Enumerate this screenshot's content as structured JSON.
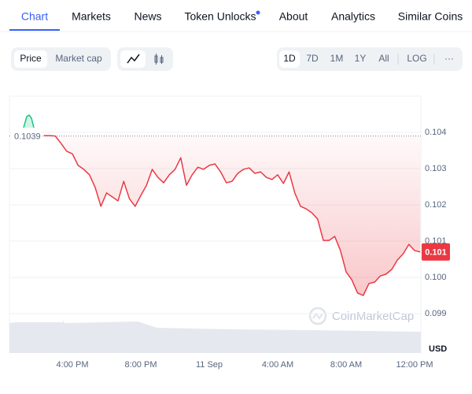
{
  "nav": {
    "tabs": [
      "Chart",
      "Markets",
      "News",
      "Token Unlocks",
      "About",
      "Analytics",
      "Similar Coins"
    ],
    "active": 0
  },
  "toolbar": {
    "metrics": [
      "Price",
      "Market cap"
    ],
    "active_metric": 0,
    "ranges": [
      "1D",
      "7D",
      "1M",
      "1Y",
      "All"
    ],
    "active_range": 0,
    "scale": "LOG",
    "more": "···"
  },
  "watermark": "CoinMarketCap",
  "chart_data": {
    "type": "line",
    "color": "#ea3943",
    "values": [
      0.10391,
      0.10391,
      0.1039,
      0.1037,
      0.10348,
      0.10341,
      0.10309,
      0.10298,
      0.10283,
      0.10248,
      0.10196,
      0.10233,
      0.10222,
      0.10211,
      0.10265,
      0.10217,
      0.10196,
      0.10226,
      0.10254,
      0.10298,
      0.10276,
      0.10261,
      0.10283,
      0.10298,
      0.1033,
      0.10254,
      0.10283,
      0.10304,
      0.10298,
      0.10309,
      0.10313,
      0.10291,
      0.10261,
      0.10265,
      0.10287,
      0.10298,
      0.10302,
      0.10287,
      0.10291,
      0.10276,
      0.1027,
      0.10283,
      0.10259,
      0.10291,
      0.10233,
      0.10196,
      0.10189,
      0.10178,
      0.10161,
      0.10102,
      0.10102,
      0.10113,
      0.10074,
      0.10015,
      0.09993,
      0.09957,
      0.0995,
      0.09983,
      0.09987,
      0.10004,
      0.10009,
      0.10022,
      0.10048,
      0.10065,
      0.10091,
      0.10074,
      0.1007
    ],
    "current_label": "0.101",
    "reference_line": 0.1039,
    "xlim": [
      0,
      66
    ],
    "xticks": [
      {
        "value": 5,
        "label": "4:00 PM"
      },
      {
        "value": 17,
        "label": "8:00 PM"
      },
      {
        "value": 29,
        "label": "11 Sep"
      },
      {
        "value": 41,
        "label": "4:00 AM"
      },
      {
        "value": 53,
        "label": "8:00 AM"
      },
      {
        "value": 65,
        "label": "12:00 PM"
      }
    ],
    "ylim": [
      0.0985,
      0.105
    ],
    "yticks": [
      0.104,
      0.103,
      0.102,
      0.101,
      {
        "value": 0.1,
        "label": "0.100"
      },
      0.099
    ],
    "y_unit": "USD",
    "grid": true
  }
}
